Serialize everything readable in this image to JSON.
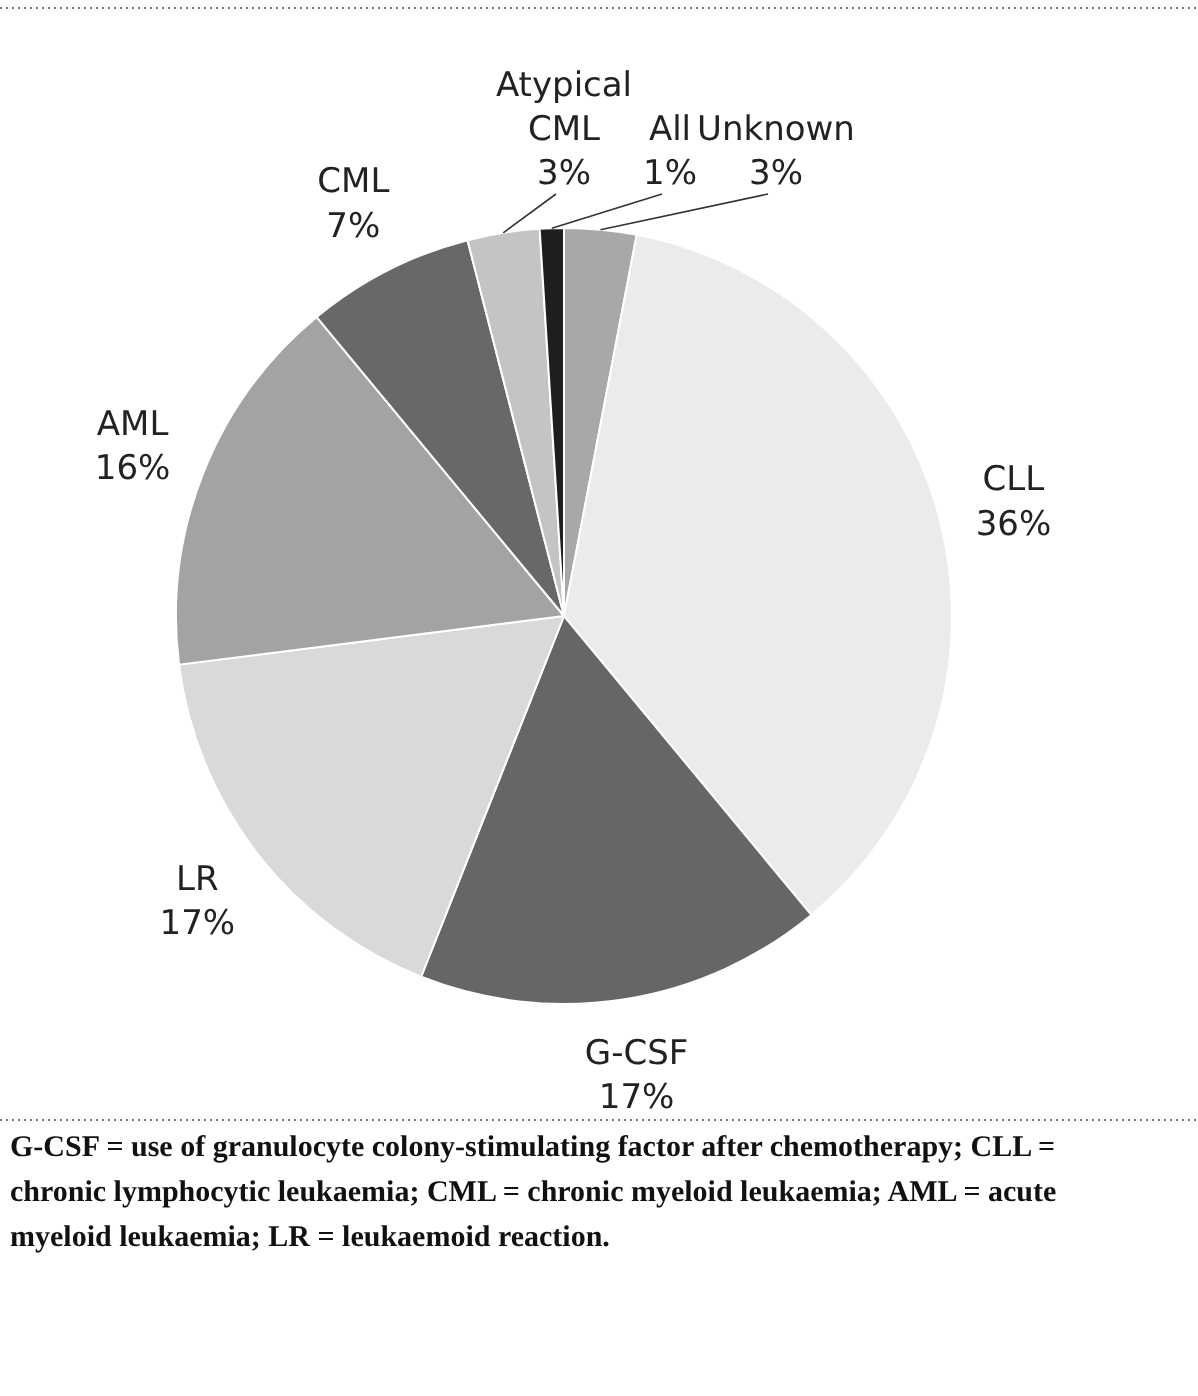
{
  "chart_data": {
    "type": "pie",
    "categories": [
      "Unknown",
      "CLL",
      "G-CSF",
      "LR",
      "AML",
      "CML",
      "Atypical CML",
      "All"
    ],
    "values": [
      3,
      36,
      17,
      17,
      16,
      7,
      3,
      1
    ],
    "colors": [
      "#a8a8a8",
      "#ebebeb",
      "#666666",
      "#d9d9d9",
      "#a3a3a3",
      "#686868",
      "#c4c4c4",
      "#1e1e1e"
    ],
    "value_labels": [
      "3%",
      "36%",
      "17%",
      "17%",
      "16%",
      "7%",
      "3%",
      "1%"
    ],
    "annotations": [
      "G-CSF = use of granulocyte colony-stimulating factor after chemotherapy; CLL = chronic lymphocytic leukaemia; CML = chronic myeloid leukaemia; AML = acute myeloid leukaemia; LR = leukaemoid reaction."
    ]
  }
}
